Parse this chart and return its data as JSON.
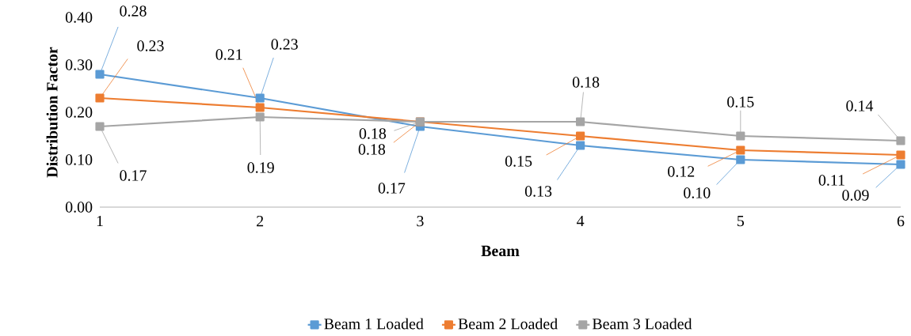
{
  "chart_data": {
    "type": "line",
    "xlabel": "Beam",
    "ylabel": "Distribution  Factor",
    "x": [
      1,
      2,
      3,
      4,
      5,
      6
    ],
    "xlim": [
      1,
      6
    ],
    "xticks": [
      1,
      2,
      3,
      4,
      5,
      6
    ],
    "ylim": [
      0,
      0.4
    ],
    "yticks": [
      {
        "value": 0,
        "label": "0.00"
      },
      {
        "value": 0.1,
        "label": "0.10"
      },
      {
        "value": 0.2,
        "label": "0.20"
      },
      {
        "value": 0.3,
        "label": "0.30"
      },
      {
        "value": 0.4,
        "label": "0.40"
      }
    ],
    "grid": false,
    "legend": "bottom",
    "marker": "square",
    "line_style": "solid",
    "series": [
      {
        "name": "Beam 1 Loaded",
        "color": "#5b9bd5",
        "values": [
          0.28,
          0.23,
          0.17,
          0.13,
          0.1,
          0.09
        ],
        "value_labels": [
          "0.28",
          "0.23",
          "0.17",
          "0.13",
          "0.10",
          "0.09"
        ]
      },
      {
        "name": "Beam 2 Loaded",
        "color": "#ed7d31",
        "values": [
          0.23,
          0.21,
          0.18,
          0.15,
          0.12,
          0.11
        ],
        "value_labels": [
          "0.23",
          "0.21",
          "0.18",
          "0.15",
          "0.12",
          "0.11"
        ]
      },
      {
        "name": "Beam 3 Loaded",
        "color": "#a5a5a5",
        "values": [
          0.17,
          0.19,
          0.18,
          0.18,
          0.15,
          0.14
        ],
        "value_labels": [
          "0.17",
          "0.19",
          "0.18",
          "0.18",
          "0.15",
          "0.14"
        ]
      }
    ]
  }
}
